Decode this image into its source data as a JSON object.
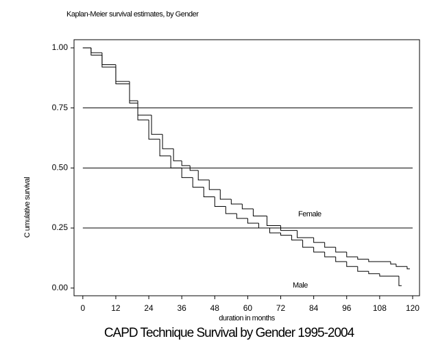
{
  "chart_data": {
    "type": "line",
    "step": true,
    "title": "Kaplan-Meier survival estimates, by Gender",
    "caption": "CAPD Technique Survival by Gender 1995-2004",
    "xlabel": "duration in months",
    "ylabel": "C umulative survival",
    "xlim": [
      -3.2,
      122.5
    ],
    "ylim": [
      -0.032,
      1.034
    ],
    "xticks": [
      0,
      12,
      24,
      36,
      48,
      60,
      72,
      84,
      96,
      108,
      120
    ],
    "yticks": [
      {
        "value": 0,
        "label": "0.00"
      },
      {
        "value": 0.25,
        "label": "0.25"
      },
      {
        "value": 0.5,
        "label": "0.50"
      },
      {
        "value": 0.75,
        "label": "0.75"
      },
      {
        "value": 1,
        "label": "1.00"
      }
    ],
    "series": [
      {
        "name": "Female",
        "color": "#000000",
        "x": [
          0,
          3,
          7,
          12,
          17,
          20,
          25,
          29,
          33,
          36,
          39,
          42,
          46,
          50,
          54,
          58,
          62,
          67,
          72,
          78,
          84,
          88,
          92,
          96,
          100,
          104,
          112,
          114,
          118
        ],
        "values": [
          1.0,
          0.98,
          0.93,
          0.86,
          0.78,
          0.72,
          0.64,
          0.58,
          0.53,
          0.51,
          0.49,
          0.45,
          0.41,
          0.37,
          0.35,
          0.33,
          0.3,
          0.26,
          0.24,
          0.21,
          0.19,
          0.17,
          0.15,
          0.13,
          0.12,
          0.11,
          0.1,
          0.09,
          0.08
        ]
      },
      {
        "name": "Male",
        "color": "#000000",
        "x": [
          0,
          3,
          7,
          12,
          17,
          20,
          24,
          28,
          32,
          36,
          40,
          44,
          48,
          52,
          56,
          60,
          64,
          68,
          72,
          76,
          80,
          84,
          88,
          92,
          96,
          100,
          104,
          108,
          115
        ],
        "values": [
          1.0,
          0.97,
          0.92,
          0.85,
          0.77,
          0.7,
          0.62,
          0.55,
          0.5,
          0.46,
          0.42,
          0.38,
          0.34,
          0.31,
          0.29,
          0.27,
          0.25,
          0.23,
          0.22,
          0.2,
          0.17,
          0.15,
          0.13,
          0.11,
          0.09,
          0.07,
          0.06,
          0.05,
          0.01
        ]
      }
    ]
  }
}
